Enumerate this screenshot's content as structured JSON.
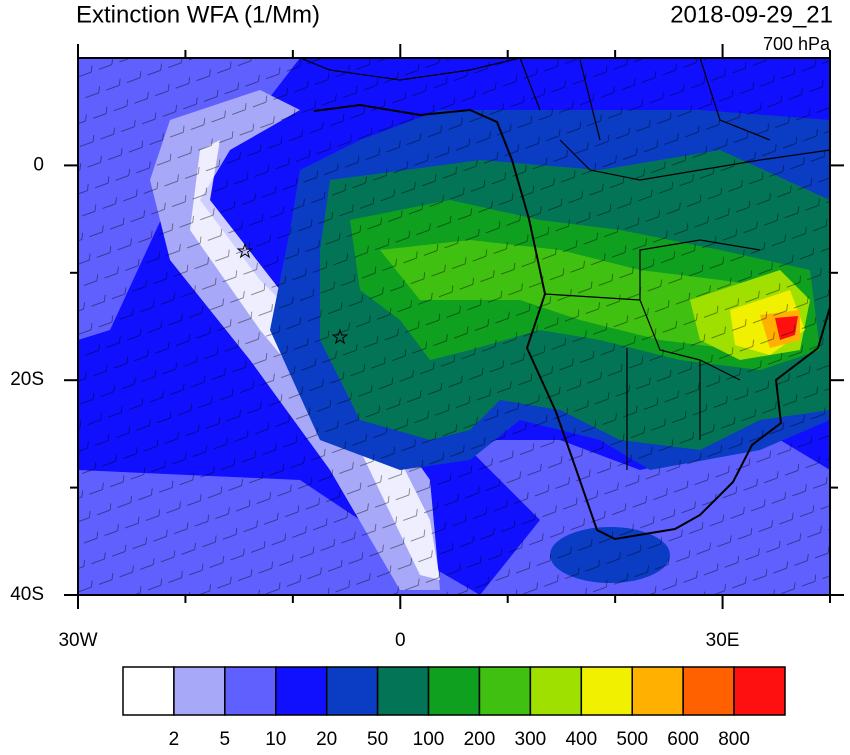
{
  "chart_data": {
    "type": "map",
    "title": "Extinction WFA (1/Mm)",
    "date": "2018-09-29_21",
    "level": "700 hPa",
    "xlim": [
      -30,
      40
    ],
    "ylim": [
      -40,
      10
    ],
    "xticks": [
      {
        "value": -30,
        "label": "30W"
      },
      0,
      {
        "value": 30,
        "label": "30E"
      }
    ],
    "yticks": [
      0,
      {
        "value": -20,
        "label": "20S"
      },
      {
        "value": -40,
        "label": "40S"
      }
    ],
    "xminorticks": [
      -20,
      -10,
      10,
      20,
      40
    ],
    "yminorticks": [
      -10,
      -30
    ],
    "colorbar": {
      "levels": [
        2,
        5,
        10,
        20,
        50,
        100,
        200,
        300,
        400,
        500,
        600,
        800
      ],
      "colors": [
        "#ffffff",
        "#a8a8f8",
        "#6060ff",
        "#1010ff",
        "#0a3cc4",
        "#047456",
        "#10a020",
        "#40c010",
        "#a0e000",
        "#f0f000",
        "#ffb000",
        "#ff6000",
        "#ff1010"
      ]
    }
  }
}
